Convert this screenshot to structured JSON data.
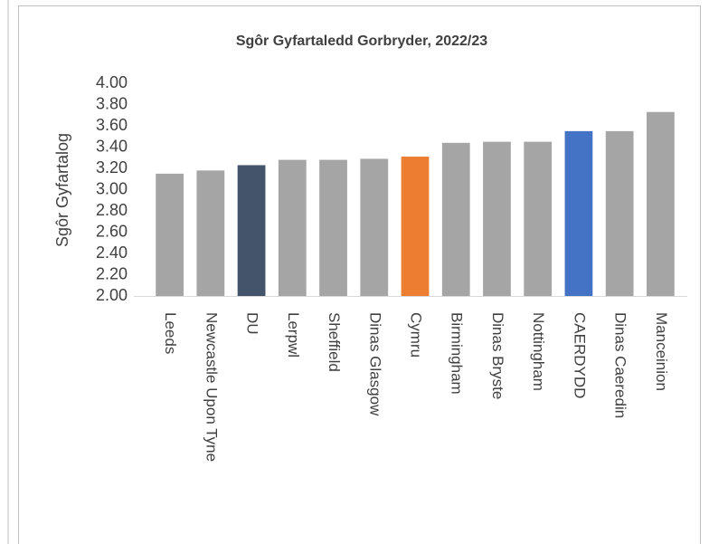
{
  "chart_data": {
    "type": "bar",
    "title": "Sgôr Gyfartaledd Gorbryder, 2022/23",
    "y_label": "Sgôr Gyfartalog",
    "categories": [
      "Leeds",
      "Newcastle Upon Tyne",
      "DU",
      "Lerpwl",
      "Sheffield",
      "Dinas Glasgow",
      "Cymru",
      "Birmingham",
      "Dinas Bryste",
      "Nottingham",
      "CAERDYDD",
      "Dinas Caeredin",
      "Manceinion"
    ],
    "values": [
      3.15,
      3.18,
      3.23,
      3.28,
      3.28,
      3.29,
      3.31,
      3.44,
      3.45,
      3.45,
      3.55,
      3.55,
      3.73
    ],
    "colors": [
      "#a5a5a5",
      "#a5a5a5",
      "#44546a",
      "#a5a5a5",
      "#a5a5a5",
      "#a5a5a5",
      "#ed7d31",
      "#a5a5a5",
      "#a5a5a5",
      "#a5a5a5",
      "#4472c4",
      "#a5a5a5",
      "#a5a5a5"
    ],
    "ylim": [
      2.0,
      4.0
    ],
    "yticks": [
      {
        "value": 2.0,
        "label": "2.00"
      },
      {
        "value": 2.2,
        "label": "2.20"
      },
      {
        "value": 2.4,
        "label": "2.40"
      },
      {
        "value": 2.6,
        "label": "2.60"
      },
      {
        "value": 2.8,
        "label": "2.80"
      },
      {
        "value": 3.0,
        "label": "3.00"
      },
      {
        "value": 3.2,
        "label": "3.20"
      },
      {
        "value": 3.4,
        "label": "3.40"
      },
      {
        "value": 3.6,
        "label": "3.60"
      },
      {
        "value": 3.8,
        "label": "3.80"
      },
      {
        "value": 4.0,
        "label": "4.00"
      }
    ],
    "grid": false
  }
}
